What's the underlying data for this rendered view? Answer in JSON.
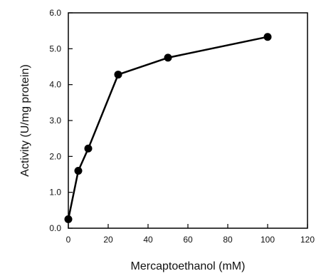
{
  "chart_data": {
    "type": "line",
    "title": "",
    "xlabel": "Mercaptoethanol (mM)",
    "ylabel": "Activity (U/mg protein)",
    "xlim": [
      0,
      120
    ],
    "ylim": [
      0,
      6
    ],
    "x_ticks": [
      {
        "value": 0,
        "label": "0"
      },
      {
        "value": 20,
        "label": "20"
      },
      {
        "value": 40,
        "label": "40"
      },
      {
        "value": 60,
        "label": "60"
      },
      {
        "value": 80,
        "label": "80"
      },
      {
        "value": 100,
        "label": "100"
      },
      {
        "value": 120,
        "label": "120"
      }
    ],
    "y_ticks": [
      {
        "value": 0,
        "label": "0.0"
      },
      {
        "value": 1,
        "label": "1.0"
      },
      {
        "value": 2,
        "label": "2.0"
      },
      {
        "value": 3,
        "label": "3.0"
      },
      {
        "value": 4,
        "label": "4.0"
      },
      {
        "value": 5,
        "label": "5.0"
      },
      {
        "value": 6,
        "label": "6.0"
      }
    ],
    "grid": false,
    "legend": "none",
    "series": [
      {
        "x": [
          0,
          5,
          10,
          25,
          50,
          100
        ],
        "y": [
          0.25,
          1.6,
          2.22,
          4.28,
          4.75,
          5.33
        ],
        "color": "#000000",
        "marker": "filled-circle"
      }
    ]
  }
}
